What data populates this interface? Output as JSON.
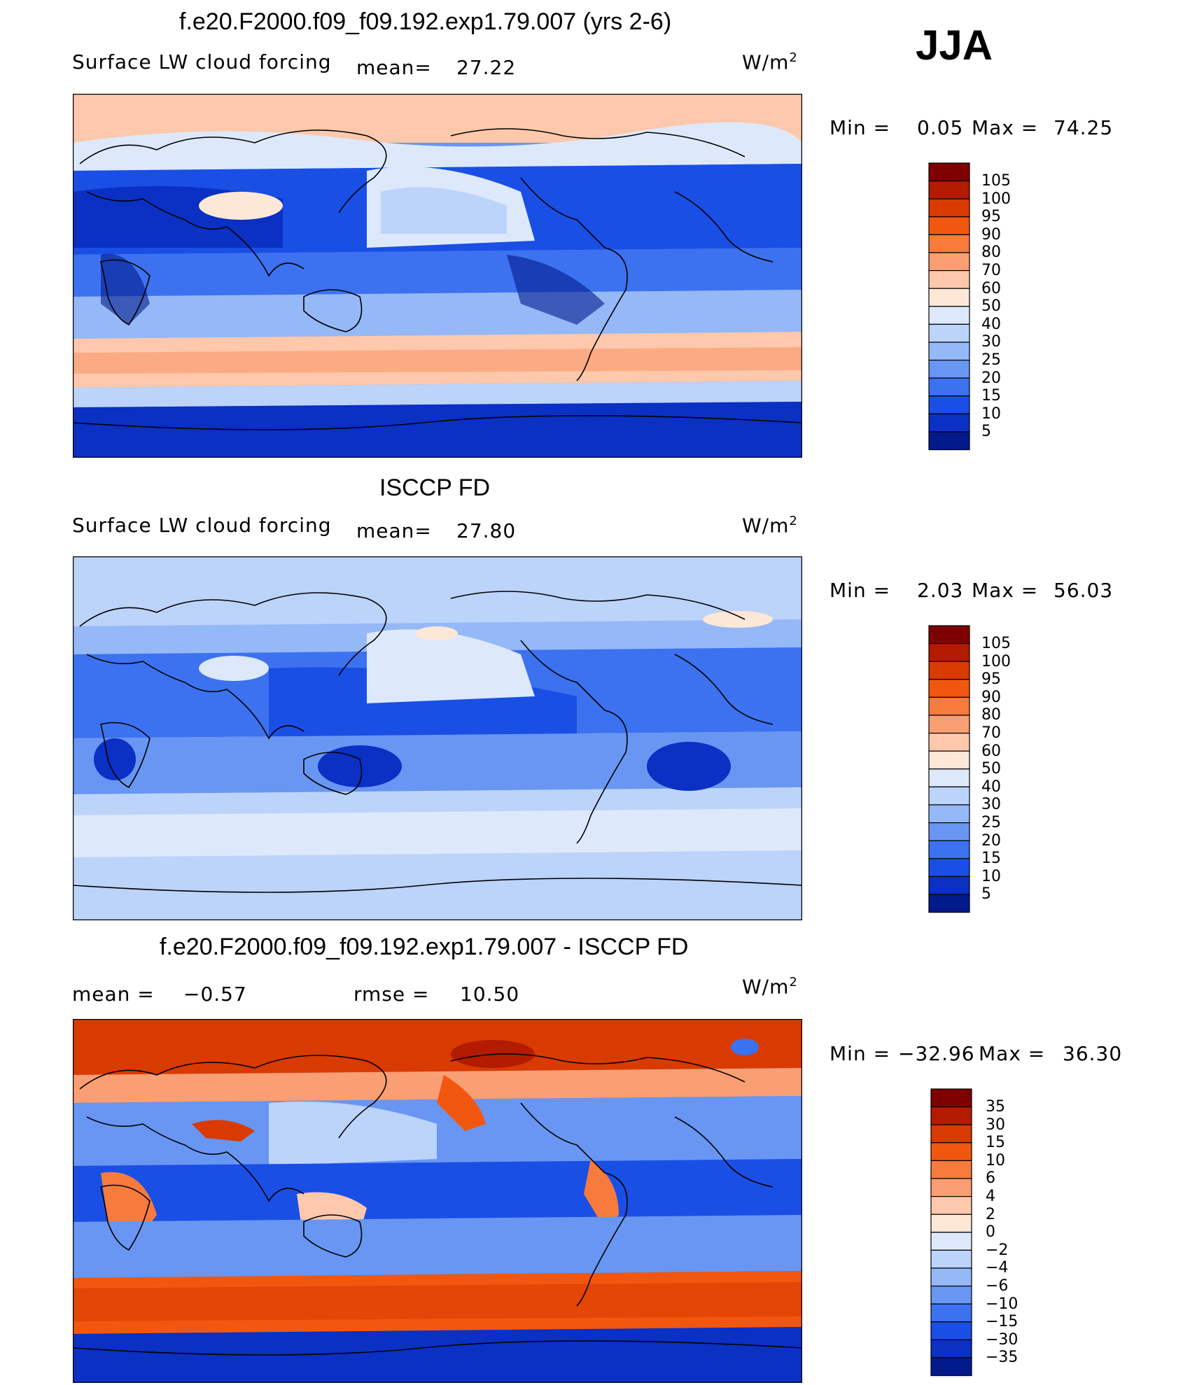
{
  "season": "JJA",
  "units": "W/m",
  "units_sup": "2",
  "panels": [
    {
      "title": "f.e20.F2000.f09_f09.192.exp1.79.007 (yrs 2-6)",
      "variable": "Surface LW cloud forcing",
      "mean_label": "mean=",
      "mean_value": "27.22",
      "min_label": "Min =",
      "min_value": "0.05",
      "max_label": "Max =",
      "max_value": "74.25"
    },
    {
      "title": "ISCCP FD",
      "variable": "Surface LW cloud forcing",
      "mean_label": "mean=",
      "mean_value": "27.80",
      "min_label": "Min =",
      "min_value": "2.03",
      "max_label": "Max =",
      "max_value": "56.03"
    },
    {
      "title": "f.e20.F2000.f09_f09.192.exp1.79.007 - ISCCP FD",
      "mean_label": "mean =",
      "mean_value": "−0.57",
      "rmse_label": "rmse =",
      "rmse_value": "10.50",
      "min_label": "Min =",
      "min_value": "−32.96",
      "max_label": "Max =",
      "max_value": "36.30"
    }
  ],
  "colorbar_abs": {
    "labels": [
      "105",
      "100",
      "95",
      "90",
      "80",
      "70",
      "60",
      "50",
      "40",
      "30",
      "25",
      "20",
      "15",
      "10",
      "5"
    ],
    "colors": [
      "#7f0000",
      "#b31b00",
      "#d93a00",
      "#f2570f",
      "#f77b3d",
      "#fa9e73",
      "#fdc8ab",
      "#fde8d8",
      "#dde9fb",
      "#bcd3fa",
      "#95b8f7",
      "#6896f2",
      "#3c72ef",
      "#1a4fe6",
      "#0a30c4",
      "#021a8c"
    ]
  },
  "colorbar_diff": {
    "labels": [
      "35",
      "30",
      "15",
      "10",
      "6",
      "4",
      "2",
      "0",
      "−2",
      "−4",
      "−6",
      "−10",
      "−15",
      "−30",
      "−35"
    ],
    "colors": [
      "#7f0000",
      "#b31b00",
      "#d93a00",
      "#f2570f",
      "#f77b3d",
      "#fa9e73",
      "#fdc8ab",
      "#fde8d8",
      "#dde9fb",
      "#bcd3fa",
      "#95b8f7",
      "#6896f2",
      "#3c72ef",
      "#1a4fe6",
      "#0a30c4",
      "#021a8c"
    ]
  }
}
